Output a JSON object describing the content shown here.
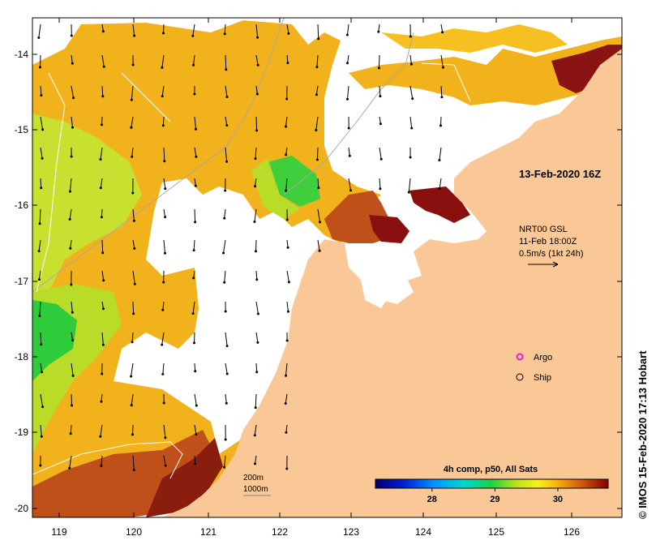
{
  "map": {
    "y_ticks": [
      "-14",
      "-15",
      "-16",
      "-17",
      "-18",
      "-19",
      "-20"
    ],
    "x_ticks": [
      "119",
      "120",
      "121",
      "122",
      "123",
      "124",
      "125",
      "126"
    ],
    "title_time": "13-Feb-2020 16Z",
    "current_info": {
      "line1": "NRT00 GSL",
      "line2": "11-Feb 18:00Z",
      "line3": "0.5m/s (1kt 24h)"
    },
    "legend": {
      "argo": "Argo",
      "ship": "Ship",
      "argo_color": "#e020e0"
    },
    "isobaths": {
      "shallow": "200m",
      "deep": "1000m"
    },
    "colorbar": {
      "title": "4h comp, p50, All Sats",
      "ticks": [
        "28",
        "29",
        "30"
      ],
      "tick_values": [
        28,
        29,
        30
      ],
      "range": [
        27.1,
        30.8
      ]
    },
    "credit": "© IMOS 15-Feb-2020 17:13 Hobart",
    "colors": {
      "land": "#fac896",
      "cloud": "#ffffff",
      "sst_warm": "#f2b21c",
      "sst_hot": "#b03a10",
      "sst_max": "#8a0f0f",
      "sst_cool": "#a8dc28",
      "sst_coolest": "#2ecc3a"
    }
  }
}
